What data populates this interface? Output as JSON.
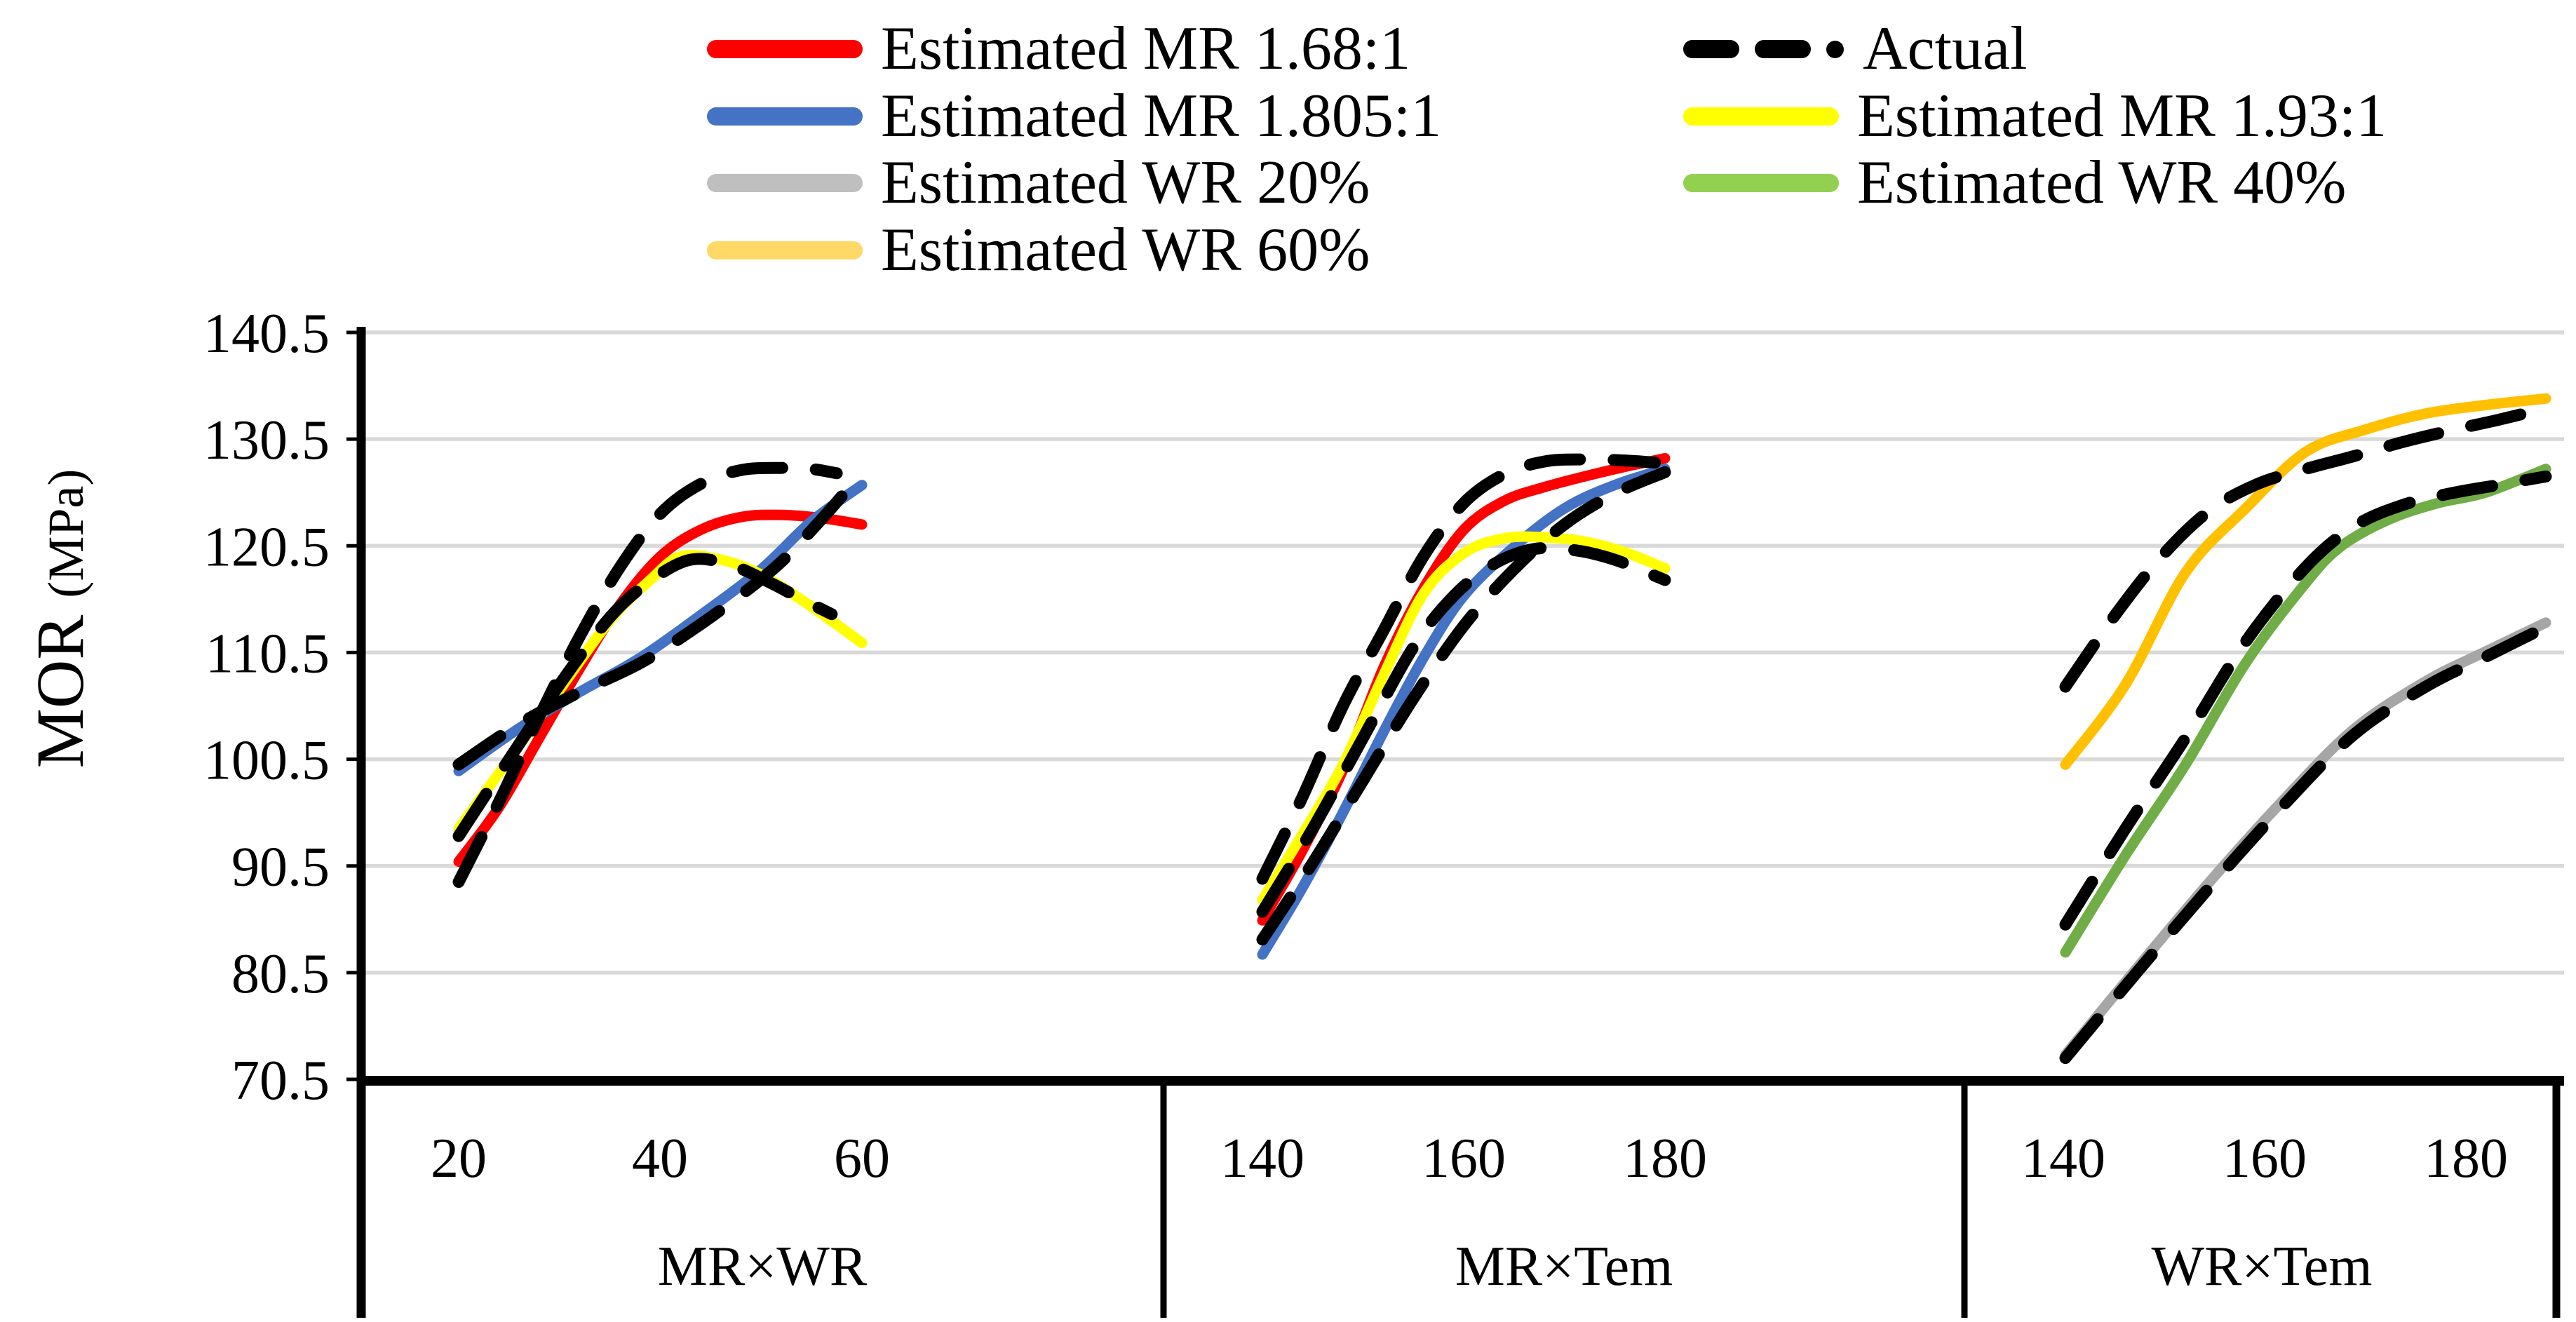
{
  "legend": {
    "items": [
      {
        "label": "Estimated MR 1.68:1",
        "color": "#FF0000",
        "swatch": "solid",
        "col": 0,
        "row": 0
      },
      {
        "label": "Actual",
        "color": "#000000",
        "swatch": "dashes",
        "col": 1,
        "row": 0
      },
      {
        "label": "Estimated MR 1.805:1",
        "color": "#4472C4",
        "swatch": "solid",
        "col": 0,
        "row": 1
      },
      {
        "label": "Estimated MR 1.93:1",
        "color": "#FFFF00",
        "swatch": "solid",
        "col": 1,
        "row": 1
      },
      {
        "label": "Estimated WR 20%",
        "color": "#BFBFBF",
        "swatch": "solid",
        "col": 0,
        "row": 2
      },
      {
        "label": "Estimated WR 40%",
        "color": "#92D050",
        "swatch": "solid",
        "col": 1,
        "row": 2
      },
      {
        "label": "Estimated WR 60%",
        "color": "#FFD966",
        "swatch": "solid",
        "col": 0,
        "row": 3
      }
    ]
  },
  "chart_data": {
    "type": "line",
    "ylabel_main": "MOR ",
    "ylabel_unit": "(MPa)",
    "ylim": [
      70.5,
      140.5
    ],
    "yticks": [
      140.5,
      130.5,
      120.5,
      110.5,
      100.5,
      90.5,
      80.5,
      70.5
    ],
    "grid": true,
    "legend_position": "top",
    "colors": {
      "red": "#FF0000",
      "blue": "#4472C4",
      "yellow": "#FFFF00",
      "gray": "#A6A6A6",
      "green": "#70AD47",
      "orange": "#FFC000",
      "actual": "#000000",
      "grid": "#D9D9D9",
      "axis": "#000000"
    },
    "panels": [
      {
        "label": "MR×WR",
        "xticks": [
          20,
          40,
          60
        ],
        "xlim": [
          20,
          60
        ],
        "series": [
          {
            "name": "Estimated MR 1.68:1",
            "colorKey": "red",
            "dashed": false,
            "points": [
              [
                20,
                90.9
              ],
              [
                24,
                96
              ],
              [
                28,
                102.5
              ],
              [
                32,
                109
              ],
              [
                36,
                115
              ],
              [
                40,
                119.5
              ],
              [
                44,
                122
              ],
              [
                48,
                123.2
              ],
              [
                52,
                123.4
              ],
              [
                56,
                123.1
              ],
              [
                60,
                122.5
              ]
            ]
          },
          {
            "name": "Estimated MR 1.805:1",
            "colorKey": "blue",
            "dashed": false,
            "points": [
              [
                20,
                99.4
              ],
              [
                26,
                103.4
              ],
              [
                32,
                106.8
              ],
              [
                38,
                110
              ],
              [
                44,
                114
              ],
              [
                50,
                118.3
              ],
              [
                55,
                122.8
              ],
              [
                60,
                126.2
              ]
            ]
          },
          {
            "name": "Estimated MR 1.93:1",
            "colorKey": "yellow",
            "dashed": false,
            "points": [
              [
                20,
                94
              ],
              [
                25,
                100.5
              ],
              [
                30,
                107
              ],
              [
                35,
                113.5
              ],
              [
                39,
                117.3
              ],
              [
                42,
                119.5
              ],
              [
                46,
                119.2
              ],
              [
                50,
                117.8
              ],
              [
                55,
                114.8
              ],
              [
                60,
                111.4
              ]
            ]
          },
          {
            "name": "Actual (MR 1.68:1)",
            "colorKey": "actual",
            "dashed": true,
            "points": [
              [
                20,
                89
              ],
              [
                24,
                96.5
              ],
              [
                28,
                104.5
              ],
              [
                32,
                112
              ],
              [
                36,
                118.5
              ],
              [
                40,
                123.5
              ],
              [
                44,
                126.3
              ],
              [
                48,
                127.6
              ],
              [
                52,
                127.8
              ],
              [
                55,
                127.7
              ],
              [
                57.5,
                127.3
              ]
            ]
          },
          {
            "name": "Actual (MR 1.805:1)",
            "colorKey": "actual",
            "dashed": true,
            "points": [
              [
                20,
                100
              ],
              [
                26,
                103.8
              ],
              [
                32,
                106.8
              ],
              [
                38,
                109.5
              ],
              [
                43,
                112.5
              ],
              [
                48,
                115.9
              ],
              [
                52,
                119
              ],
              [
                56,
                123
              ],
              [
                58.5,
                125.7
              ]
            ]
          },
          {
            "name": "Actual (MR 1.93:1)",
            "colorKey": "actual",
            "dashed": true,
            "points": [
              [
                20,
                93.3
              ],
              [
                25,
                100.5
              ],
              [
                30,
                107.5
              ],
              [
                35,
                113.8
              ],
              [
                39,
                117.2
              ],
              [
                43,
                119.2
              ],
              [
                47,
                118.7
              ],
              [
                51,
                117
              ],
              [
                54,
                115.5
              ],
              [
                57,
                114.1
              ]
            ]
          }
        ]
      },
      {
        "label": "MR×Tem",
        "xticks": [
          140,
          160,
          180
        ],
        "xlim": [
          140,
          180
        ],
        "series": [
          {
            "name": "Estimated MR 1.68:1",
            "colorKey": "red",
            "dashed": false,
            "points": [
              [
                140,
                85.4
              ],
              [
                144,
                92
              ],
              [
                148,
                99.5
              ],
              [
                152,
                109
              ],
              [
                156,
                116.5
              ],
              [
                160,
                122
              ],
              [
                164,
                124.7
              ],
              [
                168,
                126
              ],
              [
                172,
                127
              ],
              [
                176,
                127.9
              ],
              [
                180,
                128.7
              ]
            ]
          },
          {
            "name": "Estimated MR 1.805:1",
            "colorKey": "blue",
            "dashed": false,
            "points": [
              [
                140,
                82.2
              ],
              [
                144,
                88.5
              ],
              [
                148,
                95.5
              ],
              [
                152,
                103
              ],
              [
                156,
                110
              ],
              [
                160,
                115.8
              ],
              [
                165,
                120.4
              ],
              [
                170,
                124
              ],
              [
                175,
                126.2
              ],
              [
                180,
                127.7
              ]
            ]
          },
          {
            "name": "Estimated MR 1.93:1",
            "colorKey": "yellow",
            "dashed": false,
            "points": [
              [
                140,
                87.3
              ],
              [
                144,
                93.5
              ],
              [
                148,
                100
              ],
              [
                152,
                108.3
              ],
              [
                156,
                116
              ],
              [
                160,
                119.8
              ],
              [
                164,
                121.2
              ],
              [
                168,
                121.3
              ],
              [
                172,
                120.9
              ],
              [
                176,
                119.9
              ],
              [
                180,
                118.4
              ]
            ]
          },
          {
            "name": "Actual (MR 1.68:1)",
            "colorKey": "actual",
            "dashed": true,
            "points": [
              [
                140,
                89.3
              ],
              [
                144,
                97
              ],
              [
                148,
                105.5
              ],
              [
                152,
                112.5
              ],
              [
                156,
                119.5
              ],
              [
                160,
                124.5
              ],
              [
                164,
                127.2
              ],
              [
                168,
                128.4
              ],
              [
                172,
                128.6
              ],
              [
                176,
                128.5
              ],
              [
                179,
                128.3
              ]
            ]
          },
          {
            "name": "Actual (MR 1.93:1)",
            "colorKey": "actual",
            "dashed": true,
            "points": [
              [
                140,
                86.2
              ],
              [
                145,
                94
              ],
              [
                150,
                102.5
              ],
              [
                155,
                111
              ],
              [
                159,
                115.8
              ],
              [
                163,
                118.8
              ],
              [
                167,
                120.2
              ],
              [
                171,
                120.1
              ],
              [
                175,
                119.2
              ],
              [
                180,
                117.3
              ]
            ]
          },
          {
            "name": "Actual (MR 1.805:1)",
            "colorKey": "actual",
            "dashed": true,
            "points": [
              [
                140,
                83.6
              ],
              [
                145,
                90.8
              ],
              [
                150,
                98.5
              ],
              [
                155,
                106.2
              ],
              [
                160,
                113
              ],
              [
                165,
                118.3
              ],
              [
                170,
                122.5
              ],
              [
                175,
                125.4
              ],
              [
                180,
                127.4
              ]
            ]
          }
        ]
      },
      {
        "label": "WR×Tem",
        "xticks": [
          140,
          160,
          180
        ],
        "xlim": [
          140,
          180
        ],
        "series": [
          {
            "name": "Estimated WR 20%",
            "colorKey": "gray",
            "dashed": false,
            "points": [
              [
                140,
                72.8
              ],
              [
                146,
                81
              ],
              [
                152,
                89
              ],
              [
                158,
                96.5
              ],
              [
                164,
                103.3
              ],
              [
                170,
                107.8
              ],
              [
                175,
                110.6
              ],
              [
                180,
                113.3
              ]
            ]
          },
          {
            "name": "Estimated WR 40%",
            "colorKey": "green",
            "dashed": false,
            "points": [
              [
                140,
                82.4
              ],
              [
                145,
                91.5
              ],
              [
                150,
                100
              ],
              [
                155,
                109.5
              ],
              [
                160,
                117
              ],
              [
                163,
                120.5
              ],
              [
                167,
                123
              ],
              [
                171,
                124.5
              ],
              [
                175,
                125.5
              ],
              [
                180,
                127.7
              ]
            ]
          },
          {
            "name": "Estimated WR 60%",
            "colorKey": "orange",
            "dashed": false,
            "points": [
              [
                140,
                100
              ],
              [
                145,
                107.5
              ],
              [
                150,
                118
              ],
              [
                155,
                124
              ],
              [
                160,
                129.3
              ],
              [
                165,
                131.4
              ],
              [
                170,
                132.9
              ],
              [
                175,
                133.7
              ],
              [
                180,
                134.3
              ]
            ]
          },
          {
            "name": "Actual (WR 60%)",
            "colorKey": "actual",
            "dashed": true,
            "points": [
              [
                140,
                107.3
              ],
              [
                144,
                113.8
              ],
              [
                148,
                119.5
              ],
              [
                152,
                123.8
              ],
              [
                156,
                126.3
              ],
              [
                160,
                127.7
              ],
              [
                164,
                128.9
              ],
              [
                168,
                130.2
              ],
              [
                172,
                131.3
              ],
              [
                176,
                132.3
              ],
              [
                180,
                133.4
              ]
            ]
          },
          {
            "name": "Actual (WR 40%)",
            "colorKey": "actual",
            "dashed": true,
            "points": [
              [
                140,
                85
              ],
              [
                145,
                94
              ],
              [
                150,
                102.5
              ],
              [
                155,
                111.5
              ],
              [
                160,
                118.5
              ],
              [
                164,
                122.3
              ],
              [
                168,
                124.3
              ],
              [
                172,
                125.4
              ],
              [
                176,
                126.2
              ],
              [
                180,
                127
              ]
            ]
          },
          {
            "name": "Actual (WR 20%)",
            "colorKey": "actual",
            "dashed": true,
            "points": [
              [
                140,
                72.5
              ],
              [
                146,
                80.6
              ],
              [
                152,
                88.5
              ],
              [
                158,
                96
              ],
              [
                164,
                102.8
              ],
              [
                170,
                107.3
              ],
              [
                175,
                110.1
              ],
              [
                180,
                112.9
              ]
            ]
          }
        ]
      }
    ]
  }
}
